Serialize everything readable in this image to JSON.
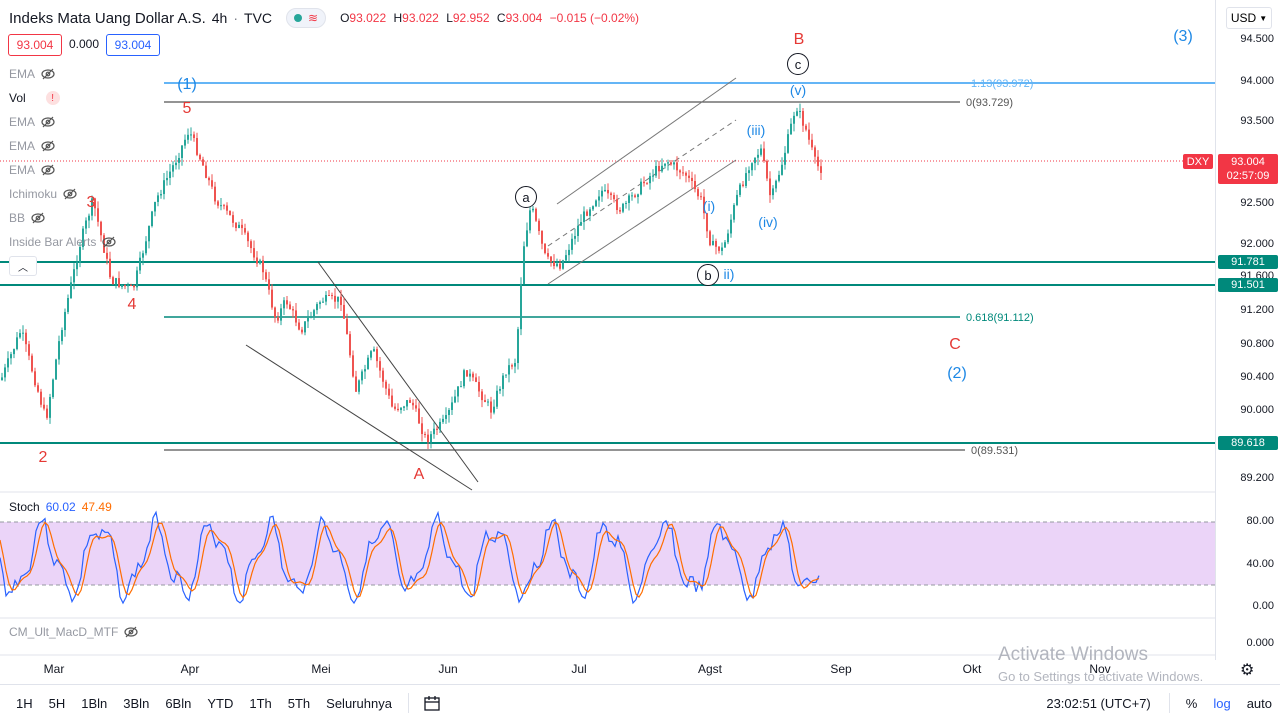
{
  "header": {
    "title": "Indeks Mata Uang Dollar A.S.",
    "interval": "4h",
    "source": "TVC",
    "ohlc": {
      "o_label": "O",
      "o": "93.022",
      "h_label": "H",
      "h": "93.022",
      "l_label": "L",
      "l": "92.952",
      "c_label": "C",
      "c": "93.004",
      "change": "−0.015 (−0.02%)"
    }
  },
  "price_boxes": {
    "bid": "93.004",
    "spread": "0.000",
    "ask": "93.004"
  },
  "indicators": [
    {
      "name": "EMA",
      "hidden": true
    },
    {
      "name": "Vol",
      "hidden": false
    },
    {
      "name": "EMA",
      "hidden": true
    },
    {
      "name": "EMA",
      "hidden": true
    },
    {
      "name": "EMA",
      "hidden": true
    },
    {
      "name": "Ichimoku",
      "hidden": true
    },
    {
      "name": "BB",
      "hidden": true
    },
    {
      "name": "Inside Bar Alerts",
      "hidden": true
    }
  ],
  "currency_select": "USD",
  "right_axis_ticks": [
    "94.500",
    "94.000",
    "93.500",
    "93.000",
    "92.500",
    "92.000",
    "91.200",
    "90.800",
    "90.400",
    "90.000",
    "89.200"
  ],
  "price_labels": {
    "symbol": "DXY",
    "last": "93.004",
    "countdown": "02:57:09",
    "level1": "91.781",
    "level2": "91.501",
    "level3": "89.618",
    "partial": "91.600"
  },
  "fib_labels": {
    "top": "1.13(93.972)",
    "zero": "0(93.729)",
    "mid": "0.618(91.112)",
    "bottom": "0(89.531)"
  },
  "wave_labels": {
    "one": "(1)",
    "two": "(2)",
    "three": "(3)",
    "five": "5",
    "three_small": "3",
    "four": "4",
    "two_small": "2",
    "A": "A",
    "B": "B",
    "C": "C",
    "a": "a",
    "b": "b",
    "c": "c",
    "i": "(i)",
    "ii": "ii)",
    "iii": "(iii)",
    "iv": "(iv)",
    "v": "(v)"
  },
  "stoch": {
    "name": "Stoch",
    "k": "60.02",
    "d": "47.49",
    "ticks": [
      "80.00",
      "40.00",
      "0.00"
    ]
  },
  "macd": {
    "name": "CM_Ult_MacD_MTF",
    "value": "0.000"
  },
  "x_labels": [
    "Mar",
    "Apr",
    "Mei",
    "Jun",
    "Jul",
    "Agst",
    "Sep",
    "Okt",
    "Nov"
  ],
  "timeframes": [
    "1H",
    "5H",
    "1Bln",
    "3Bln",
    "6Bln",
    "YTD",
    "1Th",
    "5Th",
    "Seluruhnya"
  ],
  "footer": {
    "time": "23:02:51 (UTC+7)",
    "percent": "%",
    "log": "log",
    "auto": "auto"
  },
  "watermark": {
    "line1": "Activate Windows",
    "line2": "Go to Settings to activate Windows."
  },
  "colors": {
    "teal": "#00897b",
    "red": "#f23645",
    "blue_fib": "#64b5f6",
    "stoch_band": "#e1bee7"
  }
}
